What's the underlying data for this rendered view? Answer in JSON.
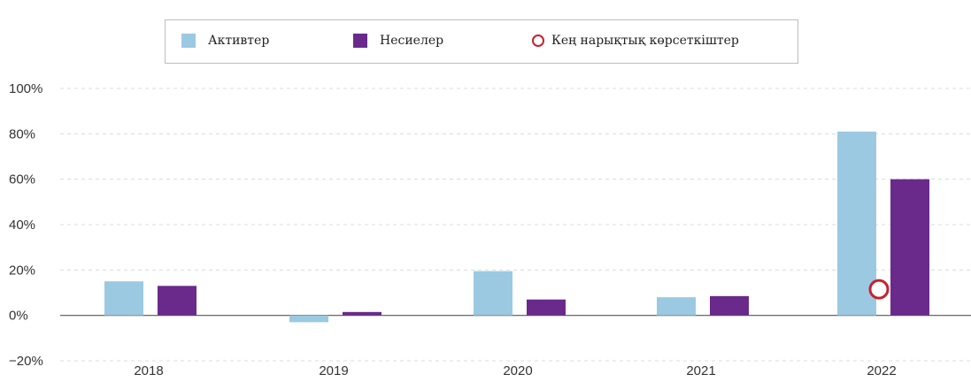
{
  "chart_data": {
    "type": "bar",
    "categories": [
      "2018",
      "2019",
      "2020",
      "2021",
      "2022"
    ],
    "series": [
      {
        "name": "Активтер",
        "color": "#9cc9e2",
        "values": [
          15,
          -3,
          19.5,
          8,
          81
        ]
      },
      {
        "name": "Несиелер",
        "color": "#6a2a8c",
        "values": [
          13,
          1.5,
          7,
          8.5,
          60
        ]
      }
    ],
    "markers": {
      "name": "Кең нарықтық көрсеткіштер",
      "color": "#c8202e",
      "points": [
        {
          "category": "2022",
          "value": 11.5
        }
      ]
    },
    "y_ticks": [
      "100%",
      "80%",
      "60%",
      "40%",
      "20%",
      "0%",
      "−20%"
    ],
    "y_tick_values": [
      100,
      80,
      60,
      40,
      20,
      0,
      -20
    ],
    "ylim": [
      -20,
      100
    ],
    "grid": true,
    "legend_position": "top"
  }
}
